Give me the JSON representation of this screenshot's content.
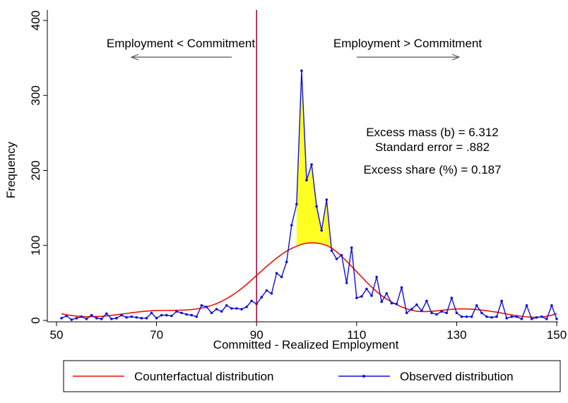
{
  "chart_data": {
    "type": "line",
    "title": "",
    "xlabel": "Committed - Realized Employment",
    "ylabel": "Frequency",
    "xlim": [
      50,
      150
    ],
    "ylim": [
      0,
      400
    ],
    "xticks": [
      50,
      70,
      90,
      110,
      130,
      150
    ],
    "yticks": [
      0,
      100,
      200,
      300,
      400
    ],
    "grid": false,
    "legend_position": "bottom",
    "reference_line_x": 90,
    "colors": {
      "counterfactual": "#e8120c",
      "observed": "#1010d8",
      "excess_fill": "#ffff22",
      "reference_line": "#a01040"
    },
    "annotations": {
      "left_label": "Employment < Commitment",
      "right_label": "Employment > Commitment",
      "stat1": "Excess mass (b) = 6.312",
      "stat2": "Standard error = .882",
      "stat3": "Excess share (%) = 0.187"
    },
    "series": [
      {
        "name": "Counterfactual distribution",
        "x": [
          51,
          52,
          53,
          54,
          55,
          56,
          57,
          58,
          59,
          60,
          61,
          62,
          63,
          64,
          65,
          66,
          67,
          68,
          69,
          70,
          71,
          72,
          73,
          74,
          75,
          76,
          77,
          78,
          79,
          80,
          81,
          82,
          83,
          84,
          85,
          86,
          87,
          88,
          89,
          90,
          91,
          92,
          93,
          94,
          95,
          96,
          97,
          98,
          99,
          100,
          101,
          102,
          103,
          104,
          105,
          106,
          107,
          108,
          109,
          110,
          111,
          112,
          113,
          114,
          115,
          116,
          117,
          118,
          119,
          120,
          121,
          122,
          123,
          124,
          125,
          126,
          127,
          128,
          129,
          130,
          131,
          132,
          133,
          134,
          135,
          136,
          137,
          138,
          139,
          140,
          141,
          142,
          143,
          144,
          145,
          146,
          147,
          148,
          149,
          150
        ],
        "values": [
          9,
          7.5,
          6.5,
          5.8,
          5.2,
          5,
          5,
          5.2,
          5.5,
          6,
          6.8,
          7.6,
          8.4,
          9.3,
          10.2,
          11,
          11.8,
          12.4,
          12.9,
          13.2,
          13.3,
          13.4,
          13.4,
          13.5,
          13.7,
          14,
          14.5,
          15.3,
          16.4,
          18,
          20,
          22.5,
          25.5,
          29,
          33,
          37.5,
          42.5,
          48,
          54,
          60,
          66,
          72,
          77.5,
          83,
          88,
          92.5,
          96,
          99,
          101.5,
          103,
          103.5,
          103.2,
          102,
          100,
          96.5,
          91.5,
          85.5,
          79,
          72,
          65,
          58,
          51,
          44.5,
          38.5,
          33,
          28.5,
          24.5,
          21,
          18,
          15.5,
          13.5,
          12.3,
          11.8,
          11.8,
          12.2,
          12.8,
          13.5,
          14.2,
          14.8,
          15.2,
          15.4,
          15.3,
          15,
          14.5,
          13.8,
          13,
          12,
          11,
          9.8,
          8.6,
          7.4,
          6.3,
          5.4,
          4.7,
          4.3,
          4.2,
          4.6,
          5.5,
          7,
          9
        ]
      },
      {
        "name": "Observed distribution",
        "x": [
          51,
          52,
          53,
          54,
          55,
          56,
          57,
          58,
          59,
          60,
          61,
          62,
          63,
          64,
          65,
          66,
          67,
          68,
          69,
          70,
          71,
          72,
          73,
          74,
          75,
          76,
          77,
          78,
          79,
          80,
          81,
          82,
          83,
          84,
          85,
          86,
          87,
          88,
          89,
          90,
          91,
          92,
          93,
          94,
          95,
          96,
          97,
          98,
          99,
          100,
          101,
          102,
          103,
          104,
          105,
          106,
          107,
          108,
          109,
          110,
          111,
          112,
          113,
          114,
          115,
          116,
          117,
          118,
          119,
          120,
          121,
          122,
          123,
          124,
          125,
          126,
          127,
          128,
          129,
          130,
          131,
          132,
          133,
          134,
          135,
          136,
          137,
          138,
          139,
          140,
          141,
          142,
          143,
          144,
          145,
          146,
          147,
          148,
          149,
          150
        ],
        "values": [
          3,
          6,
          1,
          3,
          5,
          2,
          7,
          3,
          2,
          9,
          2,
          3,
          7,
          4,
          5,
          4,
          3,
          3,
          10,
          3,
          7,
          7,
          6,
          12,
          10,
          8,
          7,
          5,
          20,
          18,
          10,
          15,
          12,
          20,
          16,
          16,
          15,
          18,
          26,
          22,
          31,
          40,
          36,
          63,
          58,
          78,
          127,
          155,
          333,
          187,
          208,
          152,
          120,
          161,
          93,
          82,
          87,
          50,
          97,
          30,
          32,
          42,
          33,
          58,
          25,
          36,
          23,
          22,
          44,
          10,
          15,
          21,
          13,
          26,
          10,
          8,
          12,
          10,
          30,
          10,
          5,
          5,
          5,
          20,
          10,
          5,
          4,
          5,
          26,
          3,
          5,
          5,
          2,
          20,
          2,
          4,
          5,
          2,
          20,
          2
        ]
      }
    ]
  }
}
